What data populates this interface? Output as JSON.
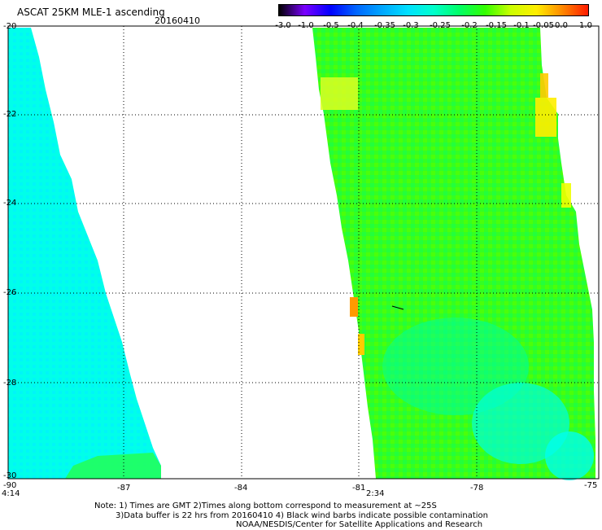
{
  "header": {
    "title": "ASCAT 25KM MLE-1 ascending",
    "date": "20160410"
  },
  "colorbar": {
    "labels": [
      "-3.0",
      "-1.0",
      "-0.5",
      "-0.4",
      "-0.35",
      "-0.3",
      "-0.25",
      "-0.2",
      "-0.15",
      "-0.1",
      "-0.05",
      "0.0",
      "1.0"
    ],
    "colors": [
      "#000000",
      "#7a00ff",
      "#0000ff",
      "#0066ff",
      "#00a6ff",
      "#00e0ff",
      "#00ffcc",
      "#00ff66",
      "#33ff00",
      "#ccff00",
      "#ffee00",
      "#ff8800",
      "#ff1a00"
    ]
  },
  "axes": {
    "lat_labels": [
      "-20",
      "-22",
      "-24",
      "-26",
      "-28",
      "-30"
    ],
    "lon_labels": [
      "-90",
      "-87",
      "-84",
      "-81",
      "-78",
      "-75"
    ]
  },
  "swath_times": [
    "4:14",
    "2:34"
  ],
  "notes": [
    "Note: 1) Times are GMT 2)Times along bottom correspond to measurement at ~25S",
    "3)Data buffer is 22 hrs from 20160410 4) Black wind barbs indicate possible contamination",
    "NOAA/NESDIS/Center for Satellite Applications and Research"
  ],
  "map_colors": {
    "grid": "#000000",
    "west_swath": "#00ffea",
    "east_swath": "#33ff22"
  }
}
